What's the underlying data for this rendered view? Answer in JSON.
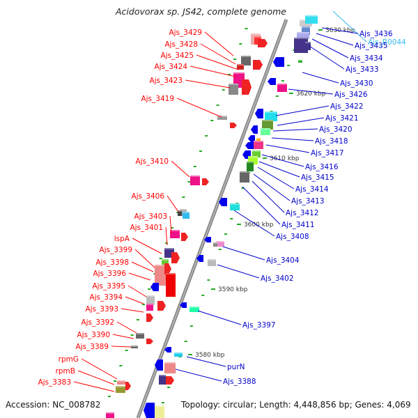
{
  "title": "Acidovorax sp. JS42, complete genome",
  "footer": {
    "accession": "Accession: NC_008782",
    "topology": "Topology: circular; Length: 4,448,856 bp; Genes: 4,069"
  },
  "colors": {
    "forward_label": "#ff0000",
    "reverse_label": "#0000cc",
    "rna_label": "#33bbee",
    "backbone": "#888888",
    "tick": "#22aa22"
  },
  "scale_labels": [
    "3630 kbp",
    "3620 kbp",
    "3610 kbp",
    "3600 kbp",
    "3590 kbp",
    "3580 kbp"
  ],
  "left_labels": [
    "Ajs_3429",
    "Ajs_3428",
    "Ajs_3425",
    "Ajs_3424",
    "Ajs_3423",
    "Ajs_3419",
    "Ajs_3410",
    "Ajs_3406",
    "Ajs_3403",
    "Ajs_3401",
    "lspA",
    "Ajs_3399",
    "Ajs_3398",
    "Ajs_3396",
    "Ajs_3395",
    "Ajs_3394",
    "Ajs_3393",
    "Ajs_3392",
    "Ajs_3390",
    "Ajs_3389",
    "rpmG",
    "rpmB",
    "Ajs_3383"
  ],
  "right_labels": [
    "Ajs_R0044",
    "Ajs_3436",
    "Ajs_3435",
    "Ajs_3434",
    "Ajs_3433",
    "Ajs_3430",
    "Ajs_3426",
    "Ajs_3422",
    "Ajs_3421",
    "Ajs_3420",
    "Ajs_3418",
    "Ajs_3417",
    "Ajs_3416",
    "Ajs_3415",
    "Ajs_3414",
    "Ajs_3413",
    "Ajs_3412",
    "Ajs_3411",
    "Ajs_3408",
    "Ajs_3404",
    "Ajs_3402",
    "Ajs_3397",
    "purN",
    "Ajs_3388"
  ]
}
